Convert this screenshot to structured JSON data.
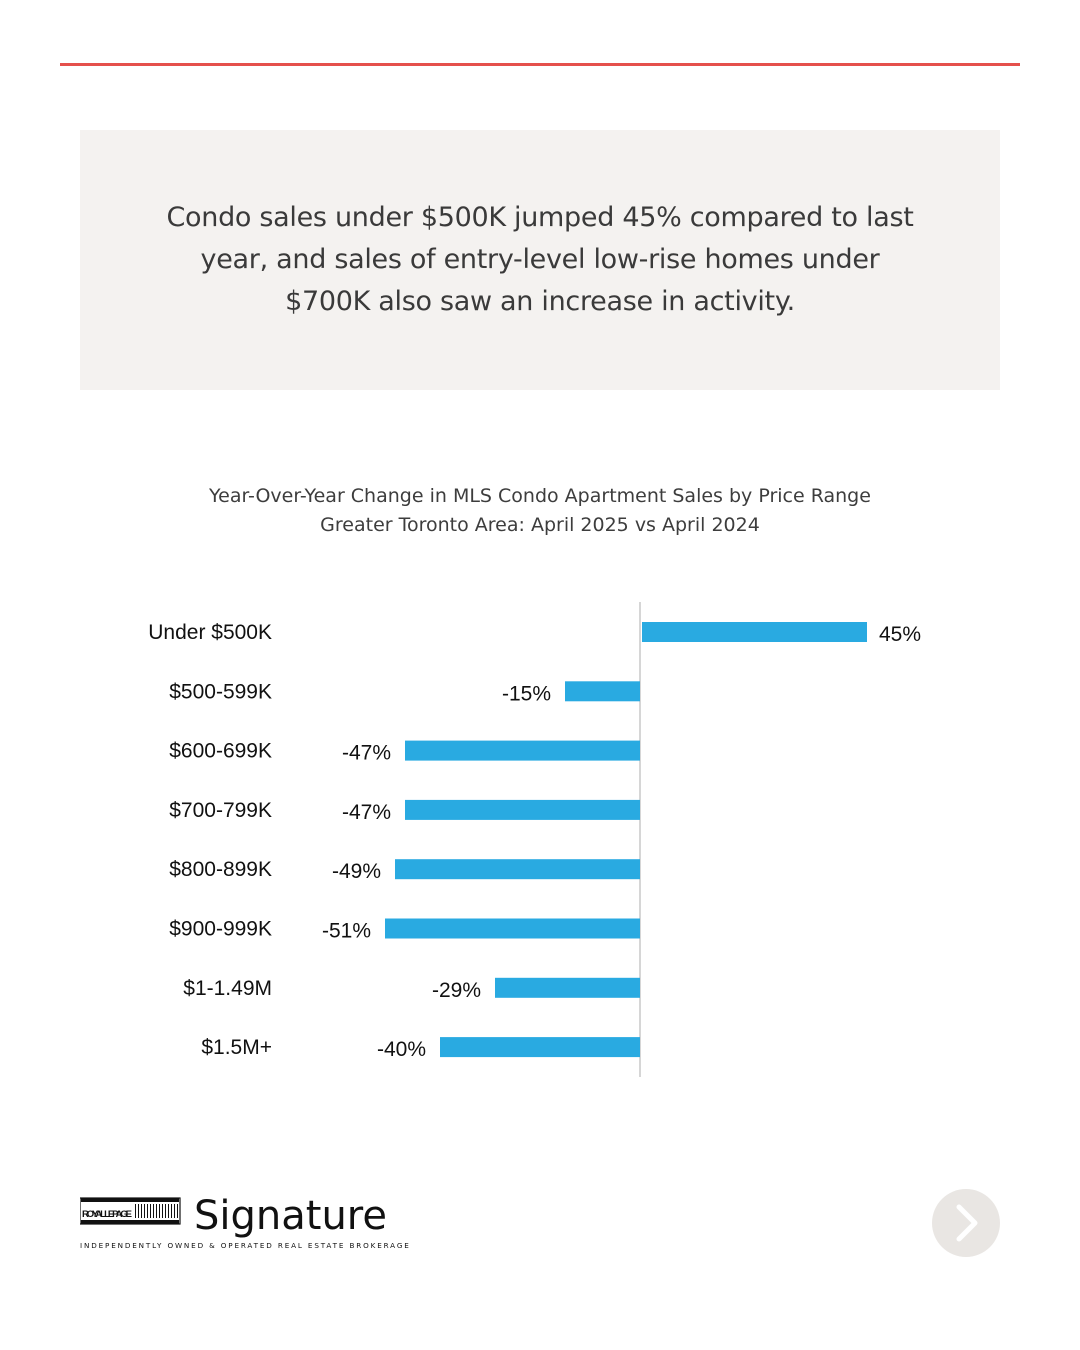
{
  "callout": {
    "text": "Condo sales under $500K jumped 45% compared to last year, and sales of entry-level low-rise homes under $700K also saw an increase in activity."
  },
  "chart_data": {
    "type": "bar",
    "orientation": "horizontal",
    "title": "Year-Over-Year Change in MLS Condo Apartment Sales by Price Range",
    "subtitle": "Greater Toronto Area: April 2025 vs April 2024",
    "categories": [
      "Under $500K",
      "$500-599K",
      "$600-699K",
      "$700-799K",
      "$800-899K",
      "$900-999K",
      "$1-1.49M",
      "$1.5M+"
    ],
    "values": [
      45,
      -15,
      -47,
      -47,
      -49,
      -51,
      -29,
      -40
    ],
    "value_labels": [
      "45%",
      "-15%",
      "-47%",
      "-47%",
      "-49%",
      "-51%",
      "-29%",
      "-40%"
    ],
    "unit": "%",
    "bar_color": "#29aae1",
    "grid": false,
    "legend": "none"
  },
  "brand": {
    "logo_left_top": "ROYAL LEPAGE",
    "logo_name": "Signature",
    "tagline": "INDEPENDENTLY OWNED & OPERATED REAL ESTATE BROKERAGE"
  },
  "nav": {
    "next_icon": "chevron-right-icon"
  },
  "colors": {
    "accent_rule": "#e5504c",
    "callout_bg": "#f4f2f0"
  }
}
